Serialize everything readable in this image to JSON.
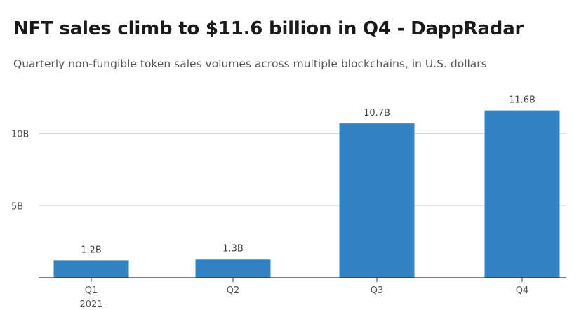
{
  "header": {
    "title": "NFT sales climb to $11.6 billion in Q4 - DappRadar",
    "subtitle": "Quarterly non-fungible token sales volumes across multiple blockchains, in U.S. dollars"
  },
  "chart_data": {
    "type": "bar",
    "title": "NFT sales climb to $11.6 billion in Q4 - DappRadar",
    "subtitle": "Quarterly non-fungible token sales volumes across multiple blockchains, in U.S. dollars",
    "categories": [
      "Q1",
      "Q2",
      "Q3",
      "Q4"
    ],
    "category_sublabels": [
      "2021",
      "",
      "",
      ""
    ],
    "values": [
      1.2,
      1.3,
      10.7,
      11.6
    ],
    "value_labels": [
      "1.2B",
      "1.3B",
      "10.7B",
      "11.6B"
    ],
    "yticks": [
      {
        "value": 5,
        "label": "5B"
      },
      {
        "value": 10,
        "label": "10B"
      }
    ],
    "ylim": [
      0,
      12
    ],
    "xlabel": "",
    "ylabel": "",
    "grid": true,
    "bar_color": "#3183c2",
    "grid_color": "#d9d9d9",
    "axis_color": "#333333"
  }
}
